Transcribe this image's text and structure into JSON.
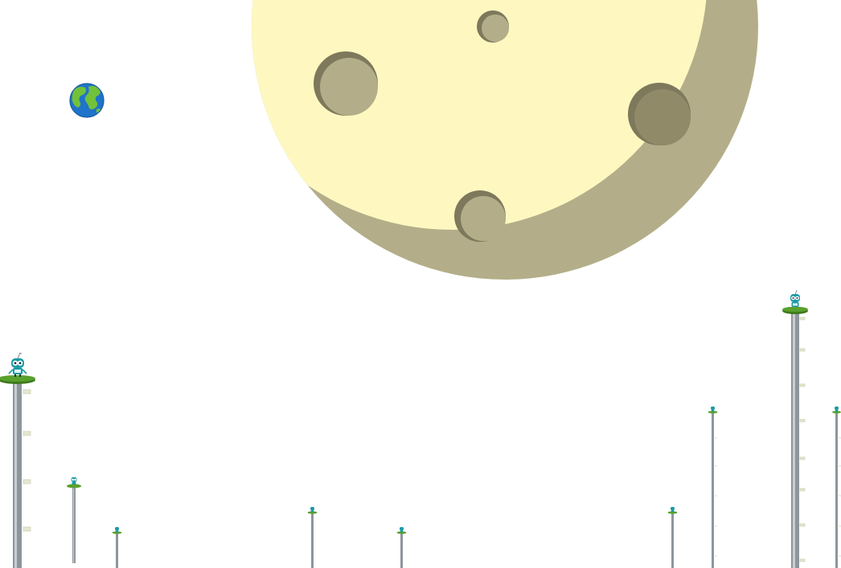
{
  "scene": {
    "background": "#ffffff",
    "moon_colors": {
      "lit": "#fef8c0",
      "shadow": "#b3ae89",
      "crater": "#b3ae89",
      "crater_dark": "#7e785c"
    },
    "pole_colors": {
      "shaft": "#8e959c",
      "shaft_highlight": "#c9ced2",
      "platform": "#5aa02c",
      "platform_dark": "#3e7a1c"
    },
    "robot_colors": {
      "body": "#1b9aa5",
      "eye": "#ffffff",
      "pupil": "#1d3040"
    },
    "earth_icon": "earth-globe-icon",
    "robot_icon": "robot-icon"
  },
  "poles": [
    {
      "id": "pole-1",
      "has_robot": true,
      "robot_size": "large"
    },
    {
      "id": "pole-2",
      "has_robot": true,
      "robot_size": "small"
    },
    {
      "id": "pole-3",
      "has_robot": true,
      "robot_size": "tiny"
    },
    {
      "id": "pole-4",
      "has_robot": true,
      "robot_size": "tiny"
    },
    {
      "id": "pole-5",
      "has_robot": true,
      "robot_size": "tiny"
    },
    {
      "id": "pole-6",
      "has_robot": true,
      "robot_size": "tiny"
    },
    {
      "id": "pole-7",
      "has_robot": true,
      "robot_size": "tiny"
    },
    {
      "id": "pole-8",
      "has_robot": true,
      "robot_size": "large"
    },
    {
      "id": "pole-9",
      "has_robot": true,
      "robot_size": "tiny"
    }
  ]
}
